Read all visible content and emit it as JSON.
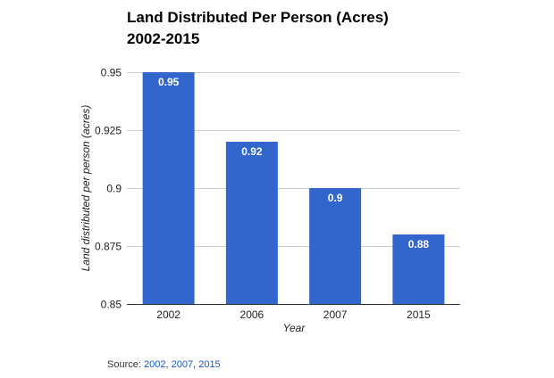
{
  "chart_data": {
    "type": "bar",
    "title_lines": [
      "Land Distributed Per Person (Acres)",
      "2002-2015"
    ],
    "xlabel": "Year",
    "ylabel": "Land distributed per person (acres)",
    "categories": [
      "2002",
      "2006",
      "2007",
      "2015"
    ],
    "values": [
      0.95,
      0.92,
      0.9,
      0.88
    ],
    "data_labels": [
      "0.95",
      "0.92",
      "0.9",
      "0.88"
    ],
    "ylim": [
      0.85,
      0.95
    ],
    "yticks": [
      0.85,
      0.875,
      0.9,
      0.925,
      0.95
    ],
    "ytick_labels": [
      "0.85",
      "0.875",
      "0.9",
      "0.925",
      "0.95"
    ],
    "grid": true,
    "legend": "none",
    "bar_color": "#3366cc"
  },
  "source": {
    "prefix": "Source:",
    "links": [
      "2002",
      "2007",
      "2015"
    ]
  }
}
